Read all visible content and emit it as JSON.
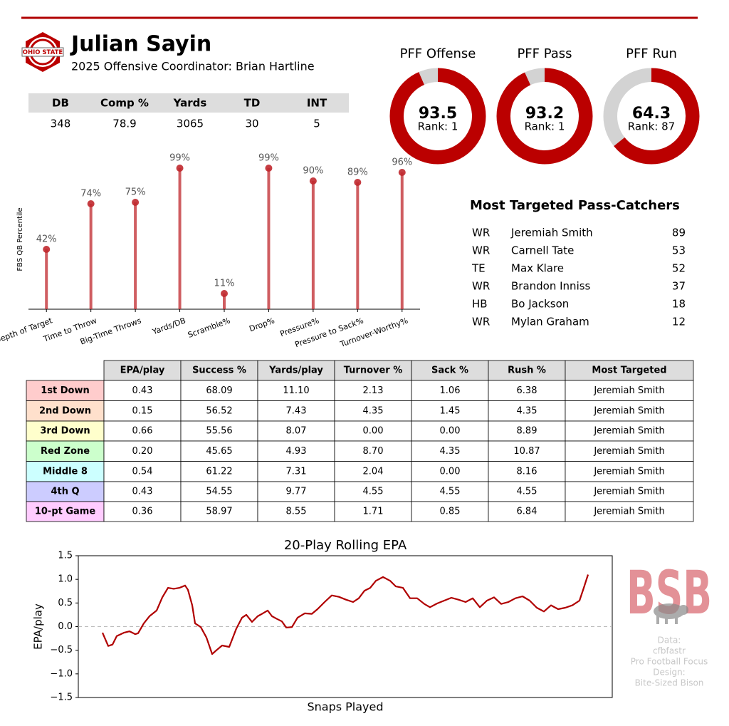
{
  "header": {
    "name": "Julian Sayin",
    "subtitle": "2025 Offensive Coordinator: Brian Hartline",
    "logo_text": "OHIO STATE"
  },
  "stats": {
    "columns": [
      "DB",
      "Comp %",
      "Yards",
      "TD",
      "INT"
    ],
    "values": [
      "348",
      "78.9",
      "3065",
      "30",
      "5"
    ]
  },
  "targets": {
    "title": "Most Targeted Pass-Catchers",
    "rows": [
      [
        "WR",
        "Jeremiah Smith",
        "89"
      ],
      [
        "WR",
        "Carnell Tate",
        "53"
      ],
      [
        "TE",
        "Max Klare",
        "52"
      ],
      [
        "WR",
        "Brandon Inniss",
        "37"
      ],
      [
        "HB",
        "Bo Jackson",
        "18"
      ],
      [
        "WR",
        "Mylan Graham",
        "12"
      ]
    ]
  },
  "situational": {
    "columns": [
      "EPA/play",
      "Success %",
      "Yards/play",
      "Turnover %",
      "Sack %",
      "Rush %",
      "Most Targeted"
    ],
    "rows": [
      {
        "label": "1st Down",
        "color": "#ffcccc",
        "cells": [
          "0.43",
          "68.09",
          "11.10",
          "2.13",
          "1.06",
          "6.38",
          "Jeremiah Smith"
        ]
      },
      {
        "label": "2nd Down",
        "color": "#ffe0cc",
        "cells": [
          "0.15",
          "56.52",
          "7.43",
          "4.35",
          "1.45",
          "4.35",
          "Jeremiah Smith"
        ]
      },
      {
        "label": "3rd Down",
        "color": "#ffffcc",
        "cells": [
          "0.66",
          "55.56",
          "8.07",
          "0.00",
          "0.00",
          "8.89",
          "Jeremiah Smith"
        ]
      },
      {
        "label": "Red Zone",
        "color": "#ccffcc",
        "cells": [
          "0.20",
          "45.65",
          "4.93",
          "8.70",
          "4.35",
          "10.87",
          "Jeremiah Smith"
        ]
      },
      {
        "label": "Middle 8",
        "color": "#ccffff",
        "cells": [
          "0.54",
          "61.22",
          "7.31",
          "2.04",
          "0.00",
          "8.16",
          "Jeremiah Smith"
        ]
      },
      {
        "label": "4th Q",
        "color": "#ccccff",
        "cells": [
          "0.43",
          "54.55",
          "9.77",
          "4.55",
          "4.55",
          "4.55",
          "Jeremiah Smith"
        ]
      },
      {
        "label": "10-pt Game",
        "color": "#ffccff",
        "cells": [
          "0.36",
          "58.97",
          "8.55",
          "1.71",
          "0.85",
          "6.84",
          "Jeremiah Smith"
        ]
      }
    ]
  },
  "credits": {
    "logo": "BSB",
    "lines": [
      "Data:",
      "cfbfastr",
      "Pro Football Focus",
      "Design:",
      "Bite-Sized Bison"
    ]
  },
  "chart_data": [
    {
      "type": "donut",
      "title": "PFF Offense",
      "value": 93.5,
      "label": "Rank: 1",
      "ylim": [
        0,
        100
      ],
      "color": "#bb0000",
      "track_color": "#d3d3d3"
    },
    {
      "type": "donut",
      "title": "PFF Pass",
      "value": 93.2,
      "label": "Rank: 1",
      "ylim": [
        0,
        100
      ],
      "color": "#bb0000",
      "track_color": "#d3d3d3"
    },
    {
      "type": "donut",
      "title": "PFF Run",
      "value": 64.3,
      "label": "Rank: 87",
      "ylim": [
        0,
        100
      ],
      "color": "#bb0000",
      "track_color": "#d3d3d3"
    },
    {
      "type": "lollipop",
      "ylabel": "FBS QB Percentile",
      "categories": [
        "Depth of Target",
        "Time to Throw",
        "Big-Time Throws",
        "Yards/DB",
        "Scramble%",
        "Drop%",
        "Pressure%",
        "Pressure to Sack%",
        "Turnover-Worthy%"
      ],
      "values": [
        42,
        74,
        75,
        99,
        11,
        99,
        90,
        89,
        96
      ],
      "value_labels": [
        "42%",
        "74%",
        "75%",
        "99%",
        "11%",
        "99%",
        "90%",
        "89%",
        "96%"
      ],
      "ylim": [
        0,
        100
      ],
      "color": "#c0282d"
    },
    {
      "type": "line",
      "title": "20-Play Rolling EPA",
      "xlabel": "Snaps Played",
      "ylabel": "EPA/play",
      "color": "#b00000",
      "x": [
        20,
        24,
        27,
        30,
        35,
        39,
        43,
        45,
        49,
        53,
        58,
        62,
        66,
        70,
        74,
        78,
        80,
        83,
        85,
        89,
        93,
        97,
        100,
        104,
        109,
        114,
        118,
        121,
        125,
        129,
        132,
        136,
        139,
        142,
        146,
        149,
        153,
        157,
        162,
        167,
        171,
        176,
        181,
        186,
        191,
        196,
        200,
        204,
        208,
        212,
        217,
        222,
        226,
        231,
        236,
        241,
        246,
        250,
        255,
        260,
        265,
        270,
        275,
        280,
        285,
        290,
        295,
        300,
        305,
        310,
        315,
        320,
        325,
        330,
        335,
        340,
        345,
        350,
        355,
        358,
        361
      ],
      "values": [
        -0.13,
        -0.41,
        -0.38,
        -0.2,
        -0.13,
        -0.1,
        -0.16,
        -0.14,
        0.07,
        0.22,
        0.34,
        0.62,
        0.82,
        0.8,
        0.82,
        0.87,
        0.78,
        0.45,
        0.07,
        -0.01,
        -0.23,
        -0.58,
        -0.5,
        -0.4,
        -0.43,
        -0.04,
        0.19,
        0.25,
        0.1,
        0.22,
        0.27,
        0.34,
        0.22,
        0.17,
        0.11,
        -0.02,
        -0.01,
        0.19,
        0.28,
        0.27,
        0.37,
        0.52,
        0.66,
        0.63,
        0.57,
        0.52,
        0.6,
        0.76,
        0.82,
        0.97,
        1.05,
        0.97,
        0.85,
        0.82,
        0.6,
        0.6,
        0.48,
        0.41,
        0.49,
        0.55,
        0.61,
        0.57,
        0.52,
        0.6,
        0.41,
        0.55,
        0.62,
        0.48,
        0.52,
        0.6,
        0.64,
        0.55,
        0.4,
        0.32,
        0.45,
        0.37,
        0.4,
        0.45,
        0.55,
        0.82,
        1.1
      ],
      "xlim": [
        3,
        378
      ],
      "ylim": [
        -1.5,
        1.5
      ],
      "yticks": [
        1.5,
        {
          "value": 1,
          "label": "1.0"
        },
        0.5,
        {
          "value": 0,
          "label": "0.0"
        },
        {
          "value": -0.5,
          "label": "−0.5"
        },
        {
          "value": -1,
          "label": "−1.0"
        },
        {
          "value": -1.5,
          "label": "−1.5"
        }
      ],
      "reference_line": 0
    }
  ]
}
